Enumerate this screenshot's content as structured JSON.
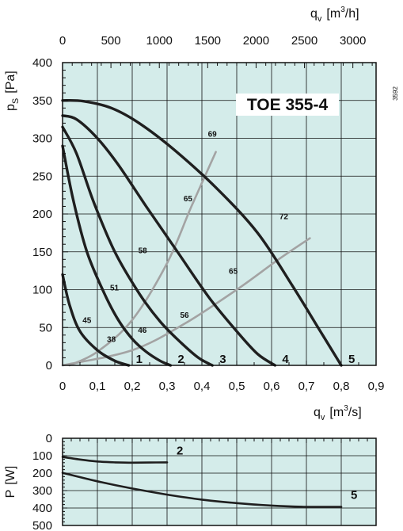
{
  "chart_data": [
    {
      "type": "line",
      "title": "TOE 355-4",
      "code": "3592",
      "xlabel": "q",
      "xlabel_sub": "v",
      "xlabel_unit": "[m",
      "xlabel_unit_sup": "3",
      "xlabel_unit_end": "/s]",
      "top_xlabel": "q",
      "top_xlabel_sub": "v",
      "top_xlabel_unit": "[m",
      "top_xlabel_unit_sup": "3",
      "top_xlabel_unit_end": "/h]",
      "ylabel": "p",
      "ylabel_sub": "S",
      "ylabel_unit": "[Pa]",
      "xlim": [
        0,
        0.9
      ],
      "ylim": [
        0,
        400
      ],
      "x_ticks": [
        "0",
        "0,1",
        "0,2",
        "0,3",
        "0,4",
        "0,5",
        "0,6",
        "0,7",
        "0,8",
        "0,9"
      ],
      "x_tick_values": [
        0,
        0.1,
        0.2,
        0.3,
        0.4,
        0.5,
        0.6,
        0.7,
        0.8,
        0.9
      ],
      "top_x_ticks": [
        "0",
        "500",
        "1000",
        "1500",
        "2000",
        "2500",
        "3000"
      ],
      "top_x_tick_values": [
        0,
        500,
        1000,
        1500,
        2000,
        2500,
        3000
      ],
      "y_ticks": [
        "0",
        "50",
        "100",
        "150",
        "200",
        "250",
        "300",
        "350",
        "400"
      ],
      "y_tick_values": [
        0,
        50,
        100,
        150,
        200,
        250,
        300,
        350,
        400
      ],
      "grid": true,
      "background": "#d4ecea",
      "curve_color": "#1f1f1f",
      "efficiency_color": "#a3a3a3",
      "series": [
        {
          "name": "1",
          "x": [
            0,
            0.02,
            0.05,
            0.1,
            0.15,
            0.19
          ],
          "y": [
            120,
            80,
            45,
            20,
            6,
            0
          ]
        },
        {
          "name": "2",
          "x": [
            0,
            0.03,
            0.07,
            0.12,
            0.16,
            0.2,
            0.24,
            0.28,
            0.31
          ],
          "y": [
            290,
            220,
            150,
            95,
            60,
            35,
            18,
            6,
            0
          ]
        },
        {
          "name": "3",
          "x": [
            0,
            0.04,
            0.09,
            0.15,
            0.22,
            0.28,
            0.34,
            0.39,
            0.43
          ],
          "y": [
            315,
            280,
            215,
            150,
            95,
            58,
            30,
            10,
            0
          ]
        },
        {
          "name": "4",
          "x": [
            0,
            0.04,
            0.1,
            0.16,
            0.24,
            0.33,
            0.42,
            0.5,
            0.56,
            0.61
          ],
          "y": [
            330,
            325,
            300,
            265,
            210,
            150,
            90,
            45,
            15,
            0
          ]
        },
        {
          "name": "5",
          "x": [
            0,
            0.06,
            0.14,
            0.22,
            0.32,
            0.44,
            0.56,
            0.66,
            0.74,
            0.8
          ],
          "y": [
            350,
            349,
            340,
            320,
            285,
            235,
            175,
            105,
            45,
            0
          ]
        }
      ],
      "efficiency_lines": [
        {
          "x": [
            0.02,
            0.1,
            0.2,
            0.3,
            0.37,
            0.44
          ],
          "y": [
            0,
            18,
            60,
            135,
            210,
            282
          ]
        },
        {
          "x": [
            0,
            0.2,
            0.35,
            0.5,
            0.62,
            0.71
          ],
          "y": [
            0,
            20,
            55,
            100,
            140,
            168
          ]
        }
      ],
      "efficiency_labels": [
        {
          "text": "45",
          "x": 0.07,
          "y": 56
        },
        {
          "text": "38",
          "x": 0.14,
          "y": 31
        },
        {
          "text": "51",
          "x": 0.149,
          "y": 99
        },
        {
          "text": "46",
          "x": 0.229,
          "y": 43
        },
        {
          "text": "58",
          "x": 0.23,
          "y": 148
        },
        {
          "text": "56",
          "x": 0.35,
          "y": 63
        },
        {
          "text": "65",
          "x": 0.36,
          "y": 217
        },
        {
          "text": "69",
          "x": 0.43,
          "y": 302
        },
        {
          "text": "65",
          "x": 0.49,
          "y": 121
        },
        {
          "text": "72",
          "x": 0.635,
          "y": 193
        }
      ]
    },
    {
      "type": "line",
      "xlabel": "",
      "ylabel": "P",
      "ylabel_unit": "[W]",
      "xlim": [
        0,
        0.9
      ],
      "ylim": [
        0,
        500
      ],
      "y_inverted": true,
      "y_ticks": [
        "0",
        "100",
        "200",
        "300",
        "400",
        "500"
      ],
      "y_tick_values": [
        0,
        100,
        200,
        300,
        400,
        500
      ],
      "grid": true,
      "series": [
        {
          "name": "2",
          "x": [
            0,
            0.05,
            0.1,
            0.15,
            0.2,
            0.25,
            0.3
          ],
          "y": [
            107,
            122,
            133,
            138,
            140,
            139,
            138
          ]
        },
        {
          "name": "5",
          "x": [
            0,
            0.1,
            0.2,
            0.3,
            0.4,
            0.5,
            0.6,
            0.7,
            0.8
          ],
          "y": [
            198,
            247,
            288,
            323,
            352,
            372,
            386,
            393,
            393
          ]
        }
      ]
    }
  ]
}
